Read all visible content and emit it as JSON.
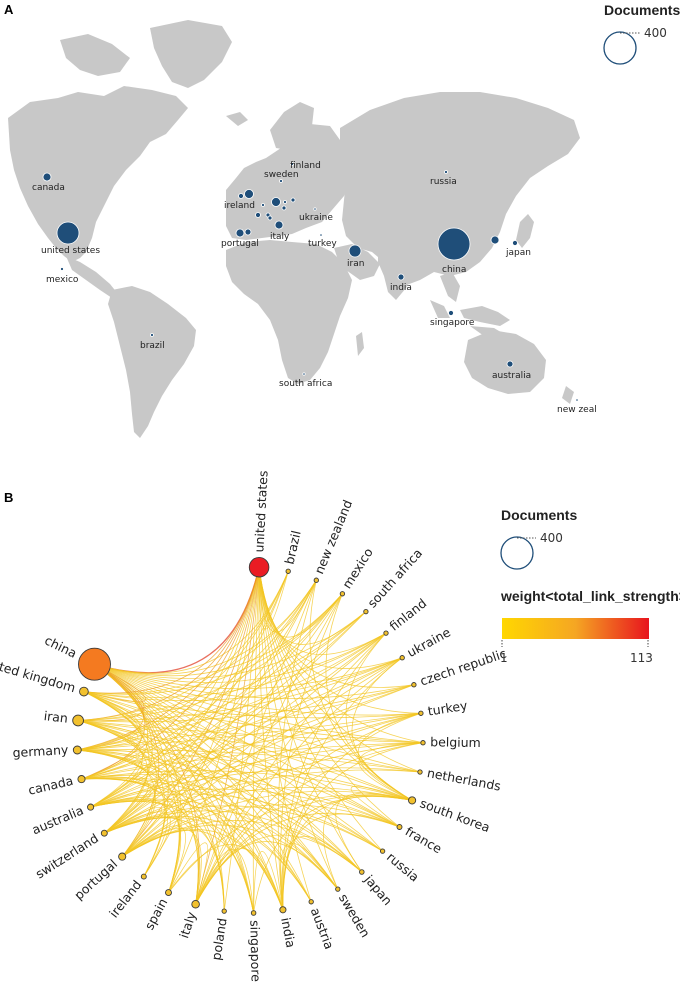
{
  "panel_a": {
    "letter": "A",
    "legend": {
      "title": "Documents",
      "size_value": "400"
    }
  },
  "panel_b": {
    "letter": "B",
    "size_legend": {
      "title": "Documents",
      "size_value": "400"
    },
    "color_legend": {
      "title": "weight<total_link_strength>",
      "min_label": "1",
      "max_label": "113"
    }
  },
  "colors": {
    "map_bubble": "#1f4e79",
    "land": "#c8c8c8",
    "gradient_low": "#ffd700",
    "gradient_mid": "#f5a623",
    "gradient_high": "#e8141e",
    "node_default": "#f2c12e",
    "node_china": "#f47a20",
    "node_us": "#ea1c24",
    "edge_low": "#f3c622",
    "edge_mid": "#ec9a22",
    "edge_high": "#e2422a"
  },
  "chart_data": [
    {
      "type": "scatter",
      "subtype": "geographic bubble map",
      "size_legend_reference": 400,
      "points": [
        {
          "country": "canada",
          "documents": 20
        },
        {
          "country": "united states",
          "documents": 150
        },
        {
          "country": "mexico",
          "documents": 4
        },
        {
          "country": "brazil",
          "documents": 4
        },
        {
          "country": "ireland",
          "documents": 10
        },
        {
          "country": "united kingdom",
          "documents": 30
        },
        {
          "country": "portugal",
          "documents": 20
        },
        {
          "country": "spain",
          "documents": 14
        },
        {
          "country": "france",
          "documents": 10
        },
        {
          "country": "belgium",
          "documents": 4
        },
        {
          "country": "netherlands",
          "documents": 6
        },
        {
          "country": "switzerland",
          "documents": 14
        },
        {
          "country": "germany",
          "documents": 25
        },
        {
          "country": "italy",
          "documents": 22
        },
        {
          "country": "austria",
          "documents": 6
        },
        {
          "country": "czech republic",
          "documents": 4
        },
        {
          "country": "poland",
          "documents": 6
        },
        {
          "country": "sweden",
          "documents": 5
        },
        {
          "country": "finland",
          "documents": 4
        },
        {
          "country": "ukraine",
          "documents": 3
        },
        {
          "country": "turkey",
          "documents": 3
        },
        {
          "country": "russia",
          "documents": 4
        },
        {
          "country": "iran",
          "documents": 45
        },
        {
          "country": "india",
          "documents": 15
        },
        {
          "country": "china",
          "documents": 400
        },
        {
          "country": "south korea",
          "documents": 20
        },
        {
          "country": "japan",
          "documents": 8
        },
        {
          "country": "singapore",
          "documents": 8
        },
        {
          "country": "australia",
          "documents": 15
        },
        {
          "country": "south africa",
          "documents": 3
        },
        {
          "country": "new zealand",
          "documents": 3
        }
      ],
      "labels_shown": [
        "canada",
        "united states",
        "mexico",
        "brazil",
        "ireland",
        "portugal",
        "italy",
        "finland",
        "sweden",
        "ukraine",
        "turkey",
        "russia",
        "iran",
        "china",
        "japan",
        "india",
        "singapore",
        "australia",
        "south africa",
        "new zeal"
      ]
    },
    {
      "type": "network",
      "layout": "circular",
      "nodes": [
        {
          "name": "united states",
          "documents": 150,
          "total_link_strength": 113
        },
        {
          "name": "brazil",
          "documents": 4,
          "total_link_strength": 8
        },
        {
          "name": "new zealand",
          "documents": 3,
          "total_link_strength": 6
        },
        {
          "name": "mexico",
          "documents": 4,
          "total_link_strength": 7
        },
        {
          "name": "south africa",
          "documents": 3,
          "total_link_strength": 5
        },
        {
          "name": "finland",
          "documents": 4,
          "total_link_strength": 6
        },
        {
          "name": "ukraine",
          "documents": 3,
          "total_link_strength": 5
        },
        {
          "name": "czech republic",
          "documents": 4,
          "total_link_strength": 6
        },
        {
          "name": "turkey",
          "documents": 3,
          "total_link_strength": 5
        },
        {
          "name": "belgium",
          "documents": 4,
          "total_link_strength": 8
        },
        {
          "name": "netherlands",
          "documents": 6,
          "total_link_strength": 10
        },
        {
          "name": "south korea",
          "documents": 20,
          "total_link_strength": 20
        },
        {
          "name": "france",
          "documents": 10,
          "total_link_strength": 15
        },
        {
          "name": "russia",
          "documents": 4,
          "total_link_strength": 5
        },
        {
          "name": "japan",
          "documents": 8,
          "total_link_strength": 10
        },
        {
          "name": "sweden",
          "documents": 5,
          "total_link_strength": 8
        },
        {
          "name": "austria",
          "documents": 6,
          "total_link_strength": 10
        },
        {
          "name": "india",
          "documents": 15,
          "total_link_strength": 15
        },
        {
          "name": "singapore",
          "documents": 8,
          "total_link_strength": 12
        },
        {
          "name": "poland",
          "documents": 6,
          "total_link_strength": 10
        },
        {
          "name": "italy",
          "documents": 22,
          "total_link_strength": 25
        },
        {
          "name": "spain",
          "documents": 14,
          "total_link_strength": 20
        },
        {
          "name": "ireland",
          "documents": 10,
          "total_link_strength": 14
        },
        {
          "name": "portugal",
          "documents": 20,
          "total_link_strength": 22
        },
        {
          "name": "switzerland",
          "documents": 14,
          "total_link_strength": 20
        },
        {
          "name": "australia",
          "documents": 15,
          "total_link_strength": 20
        },
        {
          "name": "canada",
          "documents": 20,
          "total_link_strength": 25
        },
        {
          "name": "germany",
          "documents": 25,
          "total_link_strength": 30
        },
        {
          "name": "iran",
          "documents": 45,
          "total_link_strength": 30
        },
        {
          "name": "united kingdom",
          "documents": 30,
          "total_link_strength": 40
        },
        {
          "name": "china",
          "documents": 400,
          "total_link_strength": 100
        }
      ],
      "color_scale": {
        "variable": "total_link_strength",
        "min": 1,
        "max": 113
      }
    }
  ]
}
